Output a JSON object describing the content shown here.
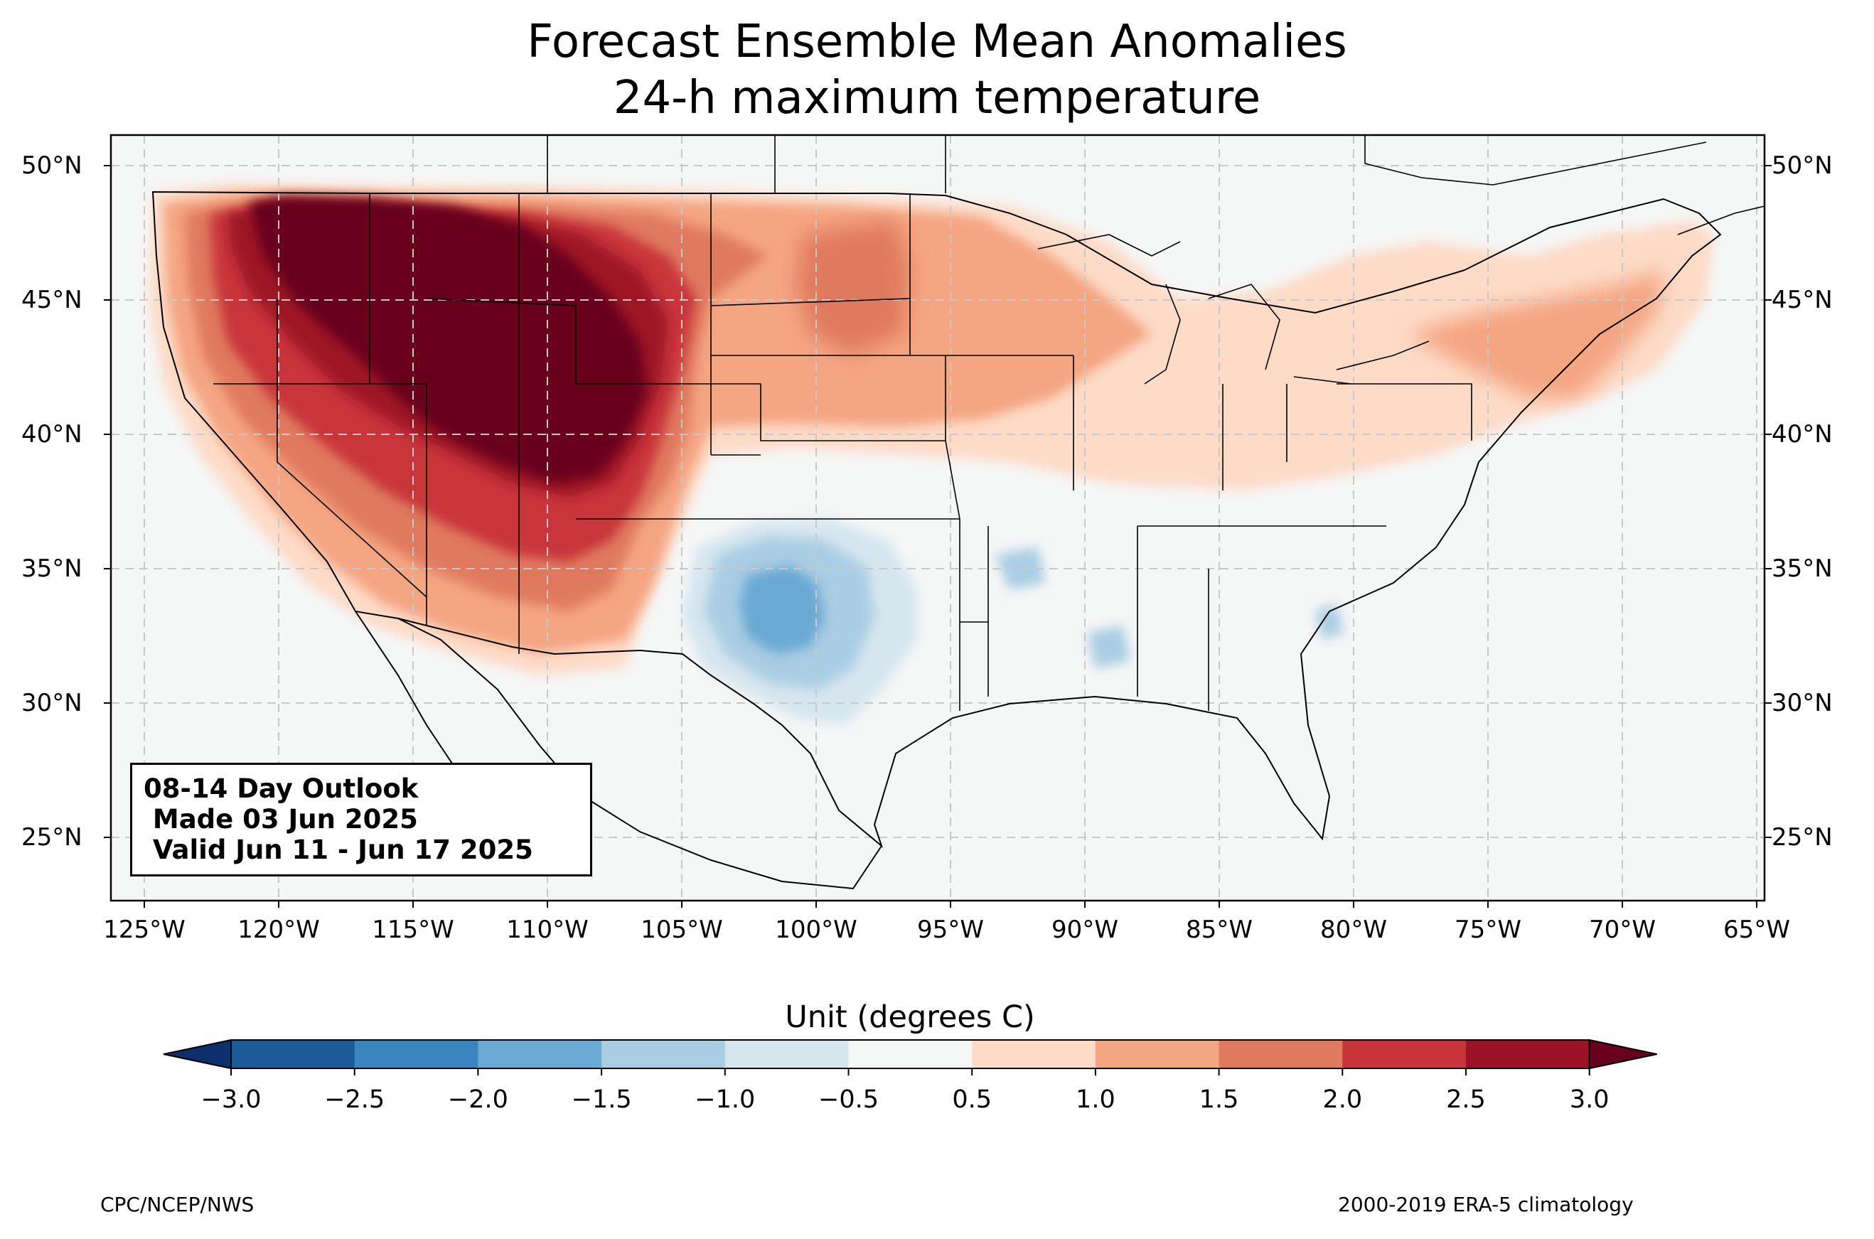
{
  "title_line1": "Forecast Ensemble Mean Anomalies",
  "title_line2": "24-h maximum temperature",
  "info_box": {
    "line1": "08-14 Day Outlook",
    "line2": " Made 03 Jun 2025",
    "line3": " Valid Jun 11 - Jun 17 2025"
  },
  "longitude_ticks": [
    "125°W",
    "120°W",
    "115°W",
    "110°W",
    "105°W",
    "100°W",
    "95°W",
    "90°W",
    "85°W",
    "80°W",
    "75°W",
    "70°W",
    "65°W"
  ],
  "latitude_ticks": [
    "50°N",
    "45°N",
    "40°N",
    "35°N",
    "30°N",
    "25°N"
  ],
  "colorbar": {
    "title": "Unit (degrees C)",
    "ticks": [
      "−3.0",
      "−2.5",
      "−2.0",
      "−1.5",
      "−1.0",
      "−0.5",
      "0.5",
      "1.0",
      "1.5",
      "2.0",
      "2.5",
      "3.0"
    ],
    "colors": [
      "#0d2f6b",
      "#1c5a9a",
      "#3a84bf",
      "#6aa9d3",
      "#a9cde3",
      "#d6e6ef",
      "#f5f6f6",
      "#fddbc7",
      "#f4a582",
      "#e07a5f",
      "#c8343a",
      "#9e1228",
      "#67001f"
    ]
  },
  "footer_left": "CPC/NCEP/NWS",
  "footer_right": "2000-2019 ERA-5 climatology"
}
